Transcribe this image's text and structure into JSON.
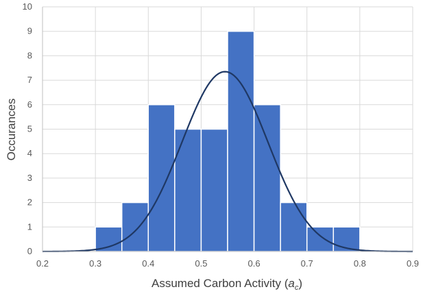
{
  "chart_data": {
    "type": "bar",
    "title": "",
    "xlabel_prefix": "Assumed Carbon Activity (",
    "xlabel_symbol": "a",
    "xlabel_subscript": "c",
    "xlabel_suffix": ")",
    "ylabel": "Occurances",
    "xlim": [
      0.2,
      0.9
    ],
    "ylim": [
      0,
      10
    ],
    "x_ticks": [
      "0.2",
      "0.3",
      "0.4",
      "0.5",
      "0.6",
      "0.7",
      "0.8",
      "0.9"
    ],
    "y_ticks": [
      "0",
      "1",
      "2",
      "3",
      "4",
      "5",
      "6",
      "7",
      "8",
      "9",
      "10"
    ],
    "grid": true,
    "bin_width": 0.05,
    "bins": [
      {
        "x": 0.3,
        "count": 1
      },
      {
        "x": 0.35,
        "count": 2
      },
      {
        "x": 0.4,
        "count": 6
      },
      {
        "x": 0.45,
        "count": 5
      },
      {
        "x": 0.5,
        "count": 5
      },
      {
        "x": 0.55,
        "count": 9
      },
      {
        "x": 0.6,
        "count": 6
      },
      {
        "x": 0.65,
        "count": 2
      },
      {
        "x": 0.7,
        "count": 1
      },
      {
        "x": 0.75,
        "count": 1
      }
    ],
    "normal_fit": {
      "mean": 0.545,
      "sd": 0.0815,
      "peak": 7.35
    },
    "colors": {
      "bar": "#4472c4",
      "curve": "#1f3864",
      "grid": "#d9d9d9",
      "axis": "#bfbfbf"
    }
  }
}
